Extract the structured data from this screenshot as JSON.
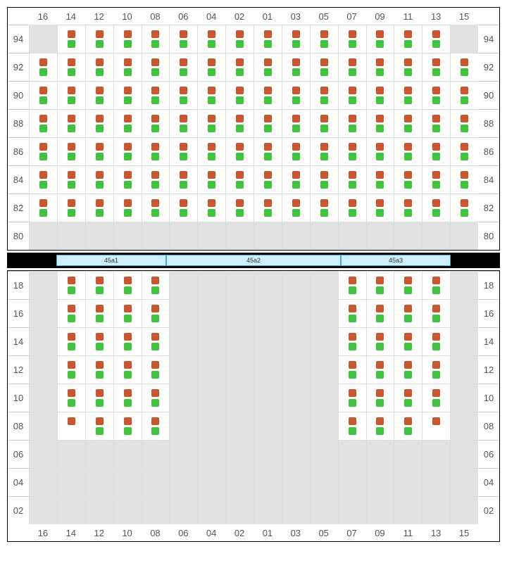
{
  "columns": [
    "16",
    "14",
    "12",
    "10",
    "08",
    "06",
    "04",
    "02",
    "01",
    "03",
    "05",
    "07",
    "09",
    "11",
    "13",
    "15"
  ],
  "top": {
    "rows": [
      "94",
      "92",
      "90",
      "88",
      "86",
      "84",
      "82",
      "80"
    ],
    "grid": [
      [
        0,
        1,
        1,
        1,
        1,
        1,
        1,
        1,
        1,
        1,
        1,
        1,
        1,
        1,
        1,
        0
      ],
      [
        1,
        1,
        1,
        1,
        1,
        1,
        1,
        1,
        1,
        1,
        1,
        1,
        1,
        1,
        1,
        1
      ],
      [
        1,
        1,
        1,
        1,
        1,
        1,
        1,
        1,
        1,
        1,
        1,
        1,
        1,
        1,
        1,
        1
      ],
      [
        1,
        1,
        1,
        1,
        1,
        1,
        1,
        1,
        1,
        1,
        1,
        1,
        1,
        1,
        1,
        1
      ],
      [
        1,
        1,
        1,
        1,
        1,
        1,
        1,
        1,
        1,
        1,
        1,
        1,
        1,
        1,
        1,
        1
      ],
      [
        1,
        1,
        1,
        1,
        1,
        1,
        1,
        1,
        1,
        1,
        1,
        1,
        1,
        1,
        1,
        1
      ],
      [
        1,
        1,
        1,
        1,
        1,
        1,
        1,
        1,
        1,
        1,
        1,
        1,
        1,
        1,
        1,
        1
      ],
      [
        0,
        0,
        0,
        0,
        0,
        0,
        0,
        0,
        0,
        0,
        0,
        0,
        0,
        0,
        0,
        0
      ]
    ]
  },
  "bottom": {
    "rows": [
      "18",
      "16",
      "14",
      "12",
      "10",
      "08",
      "06",
      "04",
      "02"
    ],
    "grid": [
      [
        0,
        1,
        1,
        1,
        1,
        0,
        0,
        0,
        0,
        0,
        0,
        1,
        1,
        1,
        1,
        0
      ],
      [
        0,
        1,
        1,
        1,
        1,
        0,
        0,
        0,
        0,
        0,
        0,
        1,
        1,
        1,
        1,
        0
      ],
      [
        0,
        1,
        1,
        1,
        1,
        0,
        0,
        0,
        0,
        0,
        0,
        1,
        1,
        1,
        1,
        0
      ],
      [
        0,
        1,
        1,
        1,
        1,
        0,
        0,
        0,
        0,
        0,
        0,
        1,
        1,
        1,
        1,
        0
      ],
      [
        0,
        1,
        1,
        1,
        1,
        0,
        0,
        0,
        0,
        0,
        0,
        1,
        1,
        1,
        1,
        0
      ],
      [
        0,
        2,
        1,
        1,
        1,
        0,
        0,
        0,
        0,
        0,
        0,
        1,
        1,
        1,
        2,
        0
      ],
      [
        0,
        0,
        0,
        0,
        0,
        0,
        0,
        0,
        0,
        0,
        0,
        0,
        0,
        0,
        0,
        0
      ],
      [
        0,
        0,
        0,
        0,
        0,
        0,
        0,
        0,
        0,
        0,
        0,
        0,
        0,
        0,
        0,
        0
      ],
      [
        0,
        0,
        0,
        0,
        0,
        0,
        0,
        0,
        0,
        0,
        0,
        0,
        0,
        0,
        0,
        0
      ]
    ]
  },
  "divider": {
    "segments": [
      {
        "label": "45a1",
        "flex": 1
      },
      {
        "label": "45a2",
        "flex": 1.6
      },
      {
        "label": "45a3",
        "flex": 1
      }
    ]
  },
  "colors": {
    "indicator_top": "#c9562c",
    "indicator_bot": "#3dc63d",
    "cell_active_bg": "#ffffff",
    "cell_inactive_bg": "#e2e2e2",
    "divider_bg": "#000000",
    "seg_bg": "#cfeeff",
    "seg_border": "#4aa8d8"
  }
}
